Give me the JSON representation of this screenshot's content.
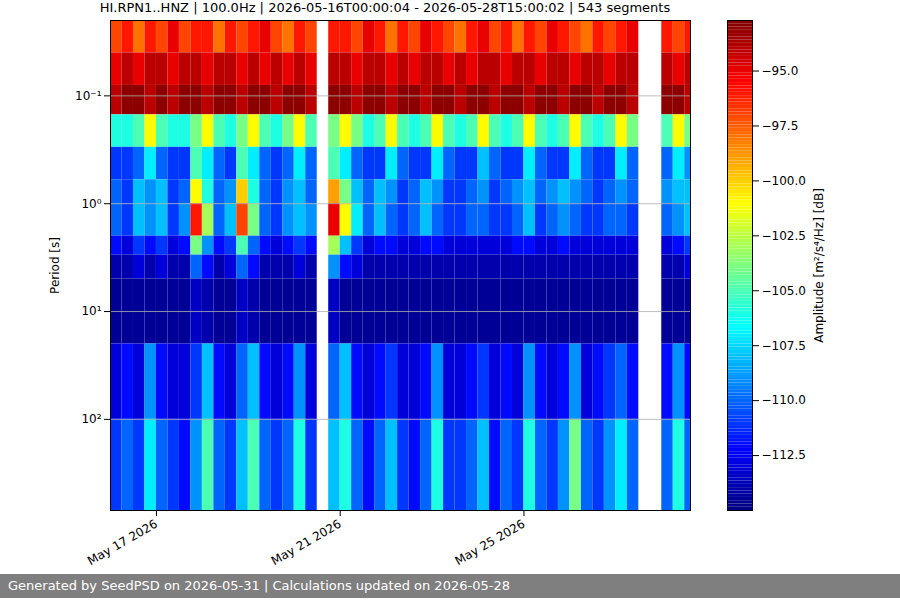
{
  "chart_data": {
    "type": "heatmap",
    "title": "HI.RPN1..HNZ | 100.0Hz | 2026-05-16T00:00:04 - 2026-05-28T15:00:02 | 543 segments",
    "caption": "Generated by SeedPSD on 2026-05-31 | Calculations updated on 2026-05-28",
    "y_label": "Period [s]",
    "x": [
      "2026-05-16T00:00",
      "2026-05-16T06:00",
      "2026-05-16T12:00",
      "2026-05-16T18:00",
      "2026-05-17T00:00",
      "2026-05-17T06:00",
      "2026-05-17T12:00",
      "2026-05-17T18:00",
      "2026-05-18T00:00",
      "2026-05-18T06:00",
      "2026-05-18T12:00",
      "2026-05-18T18:00",
      "2026-05-19T00:00",
      "2026-05-19T06:00",
      "2026-05-19T12:00",
      "2026-05-19T18:00",
      "2026-05-20T00:00",
      "2026-05-20T06:00",
      "2026-05-20T12:00",
      "2026-05-20T18:00",
      "2026-05-21T00:00",
      "2026-05-21T06:00",
      "2026-05-21T12:00",
      "2026-05-21T18:00",
      "2026-05-22T00:00",
      "2026-05-22T06:00",
      "2026-05-22T12:00",
      "2026-05-22T18:00",
      "2026-05-23T00:00",
      "2026-05-23T06:00",
      "2026-05-23T12:00",
      "2026-05-23T18:00",
      "2026-05-24T00:00",
      "2026-05-24T06:00",
      "2026-05-24T12:00",
      "2026-05-24T18:00",
      "2026-05-25T00:00",
      "2026-05-25T06:00",
      "2026-05-25T12:00",
      "2026-05-25T18:00",
      "2026-05-26T00:00",
      "2026-05-26T06:00",
      "2026-05-26T12:00",
      "2026-05-26T18:00",
      "2026-05-27T00:00",
      "2026-05-27T06:00",
      "2026-05-27T12:00",
      "2026-05-27T18:00",
      "2026-05-28T00:00",
      "2026-05-28T06:00",
      "2026-05-28T12:00",
      "2026-05-28T18:00"
    ],
    "periods": [
      0.02,
      0.04,
      0.08,
      0.15,
      0.3,
      0.6,
      1,
      2,
      3,
      5,
      20,
      100,
      700
    ],
    "values": [
      [
        -97,
        -96,
        -98,
        -96,
        -97,
        -95,
        -97,
        -96,
        -96,
        -98,
        -96,
        -97,
        -96,
        -95,
        -97,
        -98,
        -96,
        -97,
        null,
        -96,
        -96,
        -97,
        -95,
        -96,
        -98,
        -96,
        -97,
        -95,
        -96,
        -97,
        -98,
        -96,
        -95,
        -97,
        -96,
        -98,
        -96,
        -97,
        -95,
        -96,
        -97,
        -98,
        -96,
        -97,
        -96,
        -95,
        null,
        null,
        -96,
        -97,
        -96
      ],
      [
        -95,
        -94,
        -95,
        -94,
        -94,
        -95,
        -94,
        -94,
        -95,
        -94,
        -94,
        -95,
        -94,
        -95,
        -94,
        -95,
        -94,
        -95,
        null,
        -94,
        -94,
        -95,
        -94,
        -94,
        -95,
        -94,
        -95,
        -94,
        -94,
        -95,
        -94,
        -95,
        -94,
        -94,
        -95,
        -94,
        -94,
        -95,
        -94,
        -94,
        -95,
        -94,
        -94,
        -95,
        -94,
        -94,
        null,
        null,
        -94,
        -95,
        -94
      ],
      [
        -94,
        -93,
        -93,
        -94,
        -93,
        -94,
        -93,
        -93,
        -94,
        -93,
        -93,
        -94,
        -93,
        -93,
        -94,
        -93,
        -93,
        -94,
        null,
        -93,
        -93,
        -94,
        -93,
        -93,
        -94,
        -93,
        -93,
        -94,
        -93,
        -93,
        -94,
        -93,
        -93,
        -94,
        -93,
        -93,
        -94,
        -93,
        -93,
        -94,
        -93,
        -93,
        -94,
        -93,
        -93,
        -94,
        null,
        null,
        -93,
        -93,
        -94
      ],
      [
        -106,
        -106,
        -105,
        -101,
        -105,
        -106,
        -106,
        -104,
        -101,
        -105,
        -106,
        -104,
        -101,
        -105,
        -106,
        -104,
        -101,
        -105,
        null,
        -104,
        -101,
        -104,
        -106,
        -105,
        -101,
        -105,
        -106,
        -105,
        -101,
        -105,
        -106,
        -105,
        -101,
        -105,
        -106,
        -105,
        -101,
        -105,
        -106,
        -105,
        -101,
        -105,
        -106,
        -105,
        -101,
        -104,
        null,
        null,
        -105,
        -101,
        -104
      ],
      [
        -111,
        -111,
        -110,
        -107,
        -110,
        -111,
        -111,
        -105,
        -107,
        -110,
        -111,
        -105,
        -107,
        -110,
        -111,
        -110,
        -107,
        -110,
        null,
        -105,
        -107,
        -110,
        -111,
        -111,
        -107,
        -110,
        -111,
        -111,
        -107,
        -110,
        -111,
        -111,
        -108,
        -110,
        -111,
        -111,
        -107,
        -110,
        -111,
        -111,
        -107,
        -110,
        -111,
        -111,
        -107,
        -110,
        null,
        null,
        -110,
        -107,
        -109
      ],
      [
        -110,
        -111,
        -108,
        -109,
        -108,
        -111,
        -110,
        -101,
        -106,
        -110,
        -109,
        -100,
        -106,
        -110,
        -111,
        -109,
        -108,
        -110,
        null,
        -99,
        -104,
        -108,
        -110,
        -108,
        -109,
        -111,
        -110,
        -108,
        -109,
        -111,
        -111,
        -110,
        -109,
        -111,
        -110,
        -109,
        -108,
        -110,
        -109,
        -108,
        -109,
        -110,
        -111,
        -110,
        -109,
        -110,
        null,
        null,
        -109,
        -108,
        -108
      ],
      [
        -110,
        -111,
        -108,
        -109,
        -108,
        -111,
        -109,
        -96,
        -103,
        -110,
        -108,
        -97,
        -104,
        -110,
        -111,
        -109,
        -108,
        -109,
        null,
        -95,
        -101,
        -107,
        -110,
        -108,
        -110,
        -111,
        -110,
        -108,
        -110,
        -111,
        -111,
        -110,
        -110,
        -111,
        -111,
        -110,
        -108,
        -111,
        -110,
        -109,
        -110,
        -111,
        -111,
        -110,
        -110,
        -111,
        null,
        null,
        -110,
        -109,
        -108
      ],
      [
        -112,
        -113,
        -111,
        -112,
        -111,
        -113,
        -112,
        -104,
        -109,
        -112,
        -111,
        -105,
        -110,
        -112,
        -113,
        -112,
        -111,
        -112,
        null,
        -103,
        -108,
        -111,
        -113,
        -112,
        -112,
        -113,
        -113,
        -112,
        -112,
        -113,
        -113,
        -113,
        -113,
        -113,
        -113,
        -112,
        -112,
        -113,
        -113,
        -112,
        -113,
        -113,
        -113,
        -113,
        -113,
        -113,
        null,
        null,
        -113,
        -112,
        -111
      ],
      [
        -114,
        -114,
        -113,
        -114,
        -113,
        -114,
        -114,
        -110,
        -112,
        -114,
        -113,
        -110,
        -112,
        -114,
        -114,
        -114,
        -113,
        -114,
        null,
        -109,
        -112,
        -113,
        -114,
        -114,
        -114,
        -114,
        -114,
        -114,
        -114,
        -114,
        -114,
        -114,
        -114,
        -114,
        -114,
        -114,
        -114,
        -114,
        -114,
        -114,
        -114,
        -114,
        -114,
        -114,
        -114,
        -114,
        null,
        null,
        -114,
        -114,
        -113
      ],
      [
        -114.5,
        -114.5,
        -114.5,
        -114.5,
        -114.5,
        -114.5,
        -114.5,
        -113.5,
        -114,
        -114.5,
        -114.5,
        -113.5,
        -114,
        -114.5,
        -114.5,
        -114.5,
        -114.5,
        -114.5,
        null,
        -113.5,
        -114.5,
        -114.5,
        -114.5,
        -114.5,
        -114.5,
        -114.5,
        -114.5,
        -114.5,
        -114.5,
        -114.5,
        -114.5,
        -114.5,
        -114.5,
        -114.5,
        -114.5,
        -114.5,
        -114.5,
        -114.5,
        -114.5,
        -114.5,
        -114.5,
        -114.5,
        -114.5,
        -114.5,
        -114.5,
        -114.5,
        null,
        null,
        -114.5,
        -114.5,
        -114.5
      ],
      [
        -113,
        -112,
        -113,
        -109,
        -112,
        -113,
        -113,
        -111,
        -108,
        -112,
        -113,
        -110,
        -108,
        -112,
        -113,
        -112,
        -109,
        -113,
        null,
        -110,
        -108,
        -112,
        -113,
        -112,
        -111,
        -113,
        -113,
        -112,
        -109,
        -113,
        -113,
        -112,
        -111,
        -113,
        -112,
        -113,
        -109,
        -112,
        -113,
        -112,
        -109,
        -113,
        -112,
        -111,
        -110,
        -112,
        null,
        null,
        -112,
        -109,
        -112
      ],
      [
        -111,
        -110,
        -111,
        -107,
        -110,
        -111,
        -112,
        -109,
        -105,
        -110,
        -111,
        -108,
        -105,
        -110,
        -111,
        -110,
        -106,
        -111,
        null,
        -108,
        -106,
        -110,
        -112,
        -110,
        -108,
        -111,
        -112,
        -110,
        -106,
        -111,
        -111,
        -110,
        -108,
        -112,
        -110,
        -111,
        -106,
        -110,
        -111,
        -109,
        -104,
        -110,
        -111,
        -109,
        -107,
        -110,
        null,
        null,
        -110,
        -106,
        -110
      ]
    ],
    "xlim": [
      "2026-05-16T00:00:04",
      "2026-05-28T15:00:02"
    ],
    "xticks": [
      {
        "value": "2026-05-17",
        "label": "May 17 2026"
      },
      {
        "value": "2026-05-21",
        "label": "May 21 2026"
      },
      {
        "value": "2026-05-25",
        "label": "May 25 2026"
      }
    ],
    "ylim": [
      0.02,
      700
    ],
    "yticks": [
      {
        "value": 0.1,
        "label": "10⁻¹"
      },
      {
        "value": 1,
        "label": "10⁰"
      },
      {
        "value": 10,
        "label": "10¹"
      },
      {
        "value": 100,
        "label": "10²"
      }
    ],
    "log": "y",
    "grid": "y",
    "colorbar": {
      "label": "Amplitude [m²/s⁴/Hz] [dB]",
      "range": [
        -115,
        -92.7
      ],
      "ticks": [
        {
          "value": -112.5,
          "label": "−112.5"
        },
        {
          "value": -110,
          "label": "−110.0"
        },
        {
          "value": -107.5,
          "label": "−107.5"
        },
        {
          "value": -105,
          "label": "−105.0"
        },
        {
          "value": -102.5,
          "label": "−102.5"
        },
        {
          "value": -100,
          "label": "−100.0"
        },
        {
          "value": -97.5,
          "label": "−97.5"
        },
        {
          "value": -95,
          "label": "−95.0"
        }
      ]
    }
  }
}
